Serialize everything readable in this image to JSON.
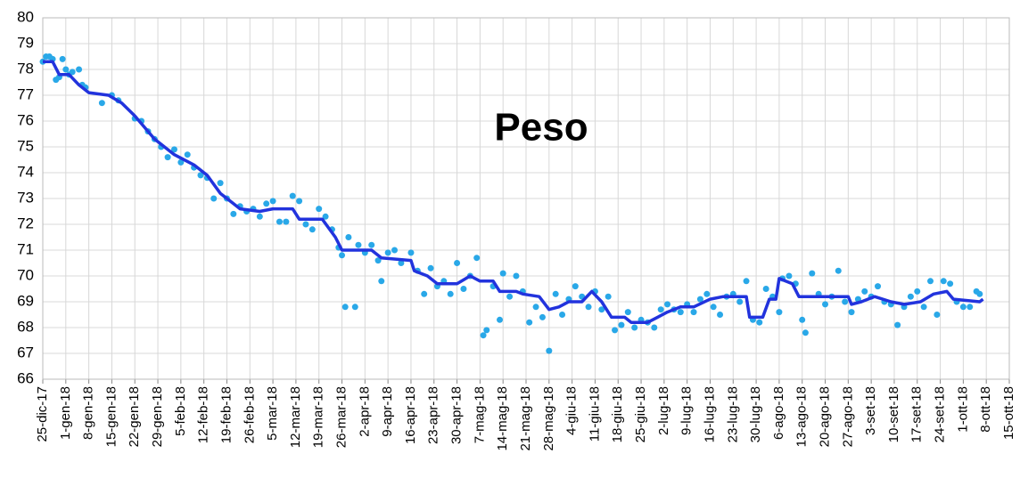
{
  "chart_data": {
    "type": "scatter",
    "title": "Peso",
    "xlim": [
      "2017-12-25",
      "2018-10-15"
    ],
    "xticks": [
      {
        "value": "2017-12-25",
        "label": "25-dic-17"
      },
      {
        "value": "2018-01-01",
        "label": "1-gen-18"
      },
      {
        "value": "2018-01-08",
        "label": "8-gen-18"
      },
      {
        "value": "2018-01-15",
        "label": "15-gen-18"
      },
      {
        "value": "2018-01-22",
        "label": "22-gen-18"
      },
      {
        "value": "2018-01-29",
        "label": "29-gen-18"
      },
      {
        "value": "2018-02-05",
        "label": "5-feb-18"
      },
      {
        "value": "2018-02-12",
        "label": "12-feb-18"
      },
      {
        "value": "2018-02-19",
        "label": "19-feb-18"
      },
      {
        "value": "2018-02-26",
        "label": "26-feb-18"
      },
      {
        "value": "2018-03-05",
        "label": "5-mar-18"
      },
      {
        "value": "2018-03-12",
        "label": "12-mar-18"
      },
      {
        "value": "2018-03-19",
        "label": "19-mar-18"
      },
      {
        "value": "2018-03-26",
        "label": "26-mar-18"
      },
      {
        "value": "2018-04-02",
        "label": "2-apr-18"
      },
      {
        "value": "2018-04-09",
        "label": "9-apr-18"
      },
      {
        "value": "2018-04-16",
        "label": "16-apr-18"
      },
      {
        "value": "2018-04-23",
        "label": "23-apr-18"
      },
      {
        "value": "2018-04-30",
        "label": "30-apr-18"
      },
      {
        "value": "2018-05-07",
        "label": "7-mag-18"
      },
      {
        "value": "2018-05-14",
        "label": "14-mag-18"
      },
      {
        "value": "2018-05-21",
        "label": "21-mag-18"
      },
      {
        "value": "2018-05-28",
        "label": "28-mag-18"
      },
      {
        "value": "2018-06-04",
        "label": "4-giu-18"
      },
      {
        "value": "2018-06-11",
        "label": "11-giu-18"
      },
      {
        "value": "2018-06-18",
        "label": "18-giu-18"
      },
      {
        "value": "2018-06-25",
        "label": "25-giu-18"
      },
      {
        "value": "2018-07-02",
        "label": "2-lug-18"
      },
      {
        "value": "2018-07-09",
        "label": "9-lug-18"
      },
      {
        "value": "2018-07-16",
        "label": "16-lug-18"
      },
      {
        "value": "2018-07-23",
        "label": "23-lug-18"
      },
      {
        "value": "2018-07-30",
        "label": "30-lug-18"
      },
      {
        "value": "2018-08-06",
        "label": "6-ago-18"
      },
      {
        "value": "2018-08-13",
        "label": "13-ago-18"
      },
      {
        "value": "2018-08-20",
        "label": "20-ago-18"
      },
      {
        "value": "2018-08-27",
        "label": "27-ago-18"
      },
      {
        "value": "2018-09-03",
        "label": "3-set-18"
      },
      {
        "value": "2018-09-10",
        "label": "10-set-18"
      },
      {
        "value": "2018-09-17",
        "label": "17-set-18"
      },
      {
        "value": "2018-09-24",
        "label": "24-set-18"
      },
      {
        "value": "2018-10-01",
        "label": "1-ott-18"
      },
      {
        "value": "2018-10-08",
        "label": "8-ott-18"
      },
      {
        "value": "2018-10-15",
        "label": "15-ott-18"
      }
    ],
    "ylim": [
      66,
      80
    ],
    "yticks": [
      66,
      67,
      68,
      69,
      70,
      71,
      72,
      73,
      74,
      75,
      76,
      77,
      78,
      79,
      80
    ],
    "grid": true,
    "series": [
      {
        "type": "scatter",
        "color": "#29a8e8",
        "x": [
          "2017-12-25",
          "2017-12-26",
          "2017-12-27",
          "2017-12-28",
          "2017-12-29",
          "2017-12-30",
          "2017-12-31",
          "2018-01-01",
          "2018-01-02",
          "2018-01-03",
          "2018-01-05",
          "2018-01-06",
          "2018-01-07",
          "2018-01-12",
          "2018-01-15",
          "2018-01-17",
          "2018-01-22",
          "2018-01-24",
          "2018-01-26",
          "2018-01-28",
          "2018-01-30",
          "2018-02-01",
          "2018-02-03",
          "2018-02-05",
          "2018-02-07",
          "2018-02-09",
          "2018-02-11",
          "2018-02-13",
          "2018-02-15",
          "2018-02-17",
          "2018-02-19",
          "2018-02-21",
          "2018-02-23",
          "2018-02-25",
          "2018-02-27",
          "2018-03-01",
          "2018-03-03",
          "2018-03-05",
          "2018-03-07",
          "2018-03-09",
          "2018-03-11",
          "2018-03-13",
          "2018-03-15",
          "2018-03-17",
          "2018-03-19",
          "2018-03-21",
          "2018-03-23",
          "2018-03-25",
          "2018-03-26",
          "2018-03-27",
          "2018-03-28",
          "2018-03-30",
          "2018-03-31",
          "2018-04-02",
          "2018-04-04",
          "2018-04-06",
          "2018-04-07",
          "2018-04-09",
          "2018-04-11",
          "2018-04-13",
          "2018-04-16",
          "2018-04-18",
          "2018-04-20",
          "2018-04-22",
          "2018-04-24",
          "2018-04-26",
          "2018-04-28",
          "2018-04-30",
          "2018-05-02",
          "2018-05-04",
          "2018-05-06",
          "2018-05-08",
          "2018-05-09",
          "2018-05-11",
          "2018-05-13",
          "2018-05-14",
          "2018-05-16",
          "2018-05-18",
          "2018-05-20",
          "2018-05-22",
          "2018-05-24",
          "2018-05-26",
          "2018-05-28",
          "2018-05-30",
          "2018-06-01",
          "2018-06-03",
          "2018-06-05",
          "2018-06-07",
          "2018-06-09",
          "2018-06-11",
          "2018-06-13",
          "2018-06-15",
          "2018-06-17",
          "2018-06-19",
          "2018-06-21",
          "2018-06-23",
          "2018-06-25",
          "2018-06-27",
          "2018-06-29",
          "2018-07-01",
          "2018-07-03",
          "2018-07-05",
          "2018-07-07",
          "2018-07-09",
          "2018-07-11",
          "2018-07-13",
          "2018-07-15",
          "2018-07-17",
          "2018-07-19",
          "2018-07-21",
          "2018-07-23",
          "2018-07-25",
          "2018-07-27",
          "2018-07-29",
          "2018-07-31",
          "2018-08-02",
          "2018-08-04",
          "2018-08-06",
          "2018-08-07",
          "2018-08-09",
          "2018-08-11",
          "2018-08-13",
          "2018-08-14",
          "2018-08-16",
          "2018-08-18",
          "2018-08-20",
          "2018-08-22",
          "2018-08-24",
          "2018-08-26",
          "2018-08-28",
          "2018-08-30",
          "2018-09-01",
          "2018-09-03",
          "2018-09-05",
          "2018-09-07",
          "2018-09-09",
          "2018-09-11",
          "2018-09-13",
          "2018-09-15",
          "2018-09-17",
          "2018-09-19",
          "2018-09-21",
          "2018-09-23",
          "2018-09-25",
          "2018-09-27",
          "2018-09-29",
          "2018-10-01",
          "2018-10-03",
          "2018-10-05",
          "2018-10-06"
        ],
        "values": [
          78.3,
          78.5,
          78.5,
          78.4,
          77.6,
          77.7,
          78.4,
          78.0,
          77.8,
          77.9,
          78.0,
          77.4,
          77.3,
          76.7,
          77.0,
          76.8,
          76.1,
          76.0,
          75.6,
          75.3,
          75.0,
          74.6,
          74.9,
          74.4,
          74.7,
          74.2,
          73.9,
          73.8,
          73.0,
          73.6,
          73.0,
          72.4,
          72.7,
          72.5,
          72.6,
          72.3,
          72.8,
          72.9,
          72.1,
          72.1,
          73.1,
          72.9,
          72.0,
          71.8,
          72.6,
          72.3,
          71.8,
          71.1,
          70.8,
          68.8,
          71.5,
          68.8,
          71.2,
          70.9,
          71.2,
          70.6,
          69.8,
          70.9,
          71.0,
          70.5,
          70.9,
          70.2,
          69.3,
          70.3,
          69.6,
          69.8,
          69.3,
          70.5,
          69.5,
          70.0,
          70.7,
          67.7,
          67.9,
          69.6,
          68.3,
          70.1,
          69.2,
          70.0,
          69.4,
          68.2,
          68.8,
          68.4,
          67.1,
          69.3,
          68.5,
          69.1,
          69.6,
          69.2,
          68.8,
          69.4,
          68.7,
          69.2,
          67.9,
          68.1,
          68.6,
          68.0,
          68.3,
          68.2,
          68.0,
          68.7,
          68.9,
          68.7,
          68.6,
          68.9,
          68.6,
          69.1,
          69.3,
          68.8,
          68.5,
          69.2,
          69.3,
          69.0,
          69.8,
          68.3,
          68.2,
          69.5,
          69.2,
          68.6,
          69.9,
          70.0,
          69.7,
          68.3,
          67.8,
          70.1,
          69.3,
          68.9,
          69.2,
          70.2,
          69.0,
          68.6,
          69.1,
          69.4,
          69.2,
          69.6,
          69.0,
          68.9,
          68.1,
          68.8,
          69.2,
          69.4,
          68.8,
          69.8,
          68.5,
          69.8,
          69.7,
          69.0,
          68.8,
          68.8,
          69.4,
          69.3
        ]
      },
      {
        "type": "line",
        "color": "#2233dd",
        "x": [
          "2017-12-25",
          "2017-12-28",
          "2017-12-30",
          "2018-01-02",
          "2018-01-05",
          "2018-01-08",
          "2018-01-14",
          "2018-01-18",
          "2018-01-22",
          "2018-01-28",
          "2018-02-03",
          "2018-02-09",
          "2018-02-13",
          "2018-02-17",
          "2018-02-21",
          "2018-02-23",
          "2018-03-01",
          "2018-03-05",
          "2018-03-11",
          "2018-03-13",
          "2018-03-20",
          "2018-03-24",
          "2018-03-26",
          "2018-03-31",
          "2018-04-04",
          "2018-04-07",
          "2018-04-16",
          "2018-04-17",
          "2018-04-21",
          "2018-04-24",
          "2018-04-30",
          "2018-05-04",
          "2018-05-07",
          "2018-05-11",
          "2018-05-13",
          "2018-05-18",
          "2018-05-20",
          "2018-05-25",
          "2018-05-28",
          "2018-05-31",
          "2018-06-03",
          "2018-06-07",
          "2018-06-10",
          "2018-06-13",
          "2018-06-16",
          "2018-06-20",
          "2018-06-22",
          "2018-06-27",
          "2018-06-30",
          "2018-07-03",
          "2018-07-07",
          "2018-07-11",
          "2018-07-16",
          "2018-07-20",
          "2018-07-23",
          "2018-07-27",
          "2018-07-28",
          "2018-08-01",
          "2018-08-03",
          "2018-08-05",
          "2018-08-06",
          "2018-08-10",
          "2018-08-12",
          "2018-08-20",
          "2018-08-27",
          "2018-08-28",
          "2018-08-31",
          "2018-09-04",
          "2018-09-09",
          "2018-09-13",
          "2018-09-18",
          "2018-09-22",
          "2018-09-26",
          "2018-09-28",
          "2018-10-06",
          "2018-10-07"
        ],
        "values": [
          78.3,
          78.3,
          77.8,
          77.8,
          77.4,
          77.1,
          77.0,
          76.7,
          76.2,
          75.3,
          74.7,
          74.3,
          73.9,
          73.2,
          72.8,
          72.6,
          72.5,
          72.6,
          72.6,
          72.2,
          72.2,
          71.5,
          71.0,
          71.0,
          71.0,
          70.7,
          70.6,
          70.2,
          70.0,
          69.7,
          69.7,
          70.0,
          69.8,
          69.8,
          69.4,
          69.4,
          69.3,
          69.2,
          68.7,
          68.8,
          69.0,
          69.0,
          69.4,
          69.0,
          68.4,
          68.4,
          68.2,
          68.2,
          68.4,
          68.6,
          68.8,
          68.8,
          69.1,
          69.2,
          69.2,
          69.2,
          68.4,
          68.4,
          69.1,
          69.1,
          69.9,
          69.7,
          69.2,
          69.2,
          69.2,
          68.9,
          69.0,
          69.2,
          69.0,
          68.9,
          69.0,
          69.3,
          69.4,
          69.1,
          69.0,
          69.1
        ]
      }
    ]
  }
}
